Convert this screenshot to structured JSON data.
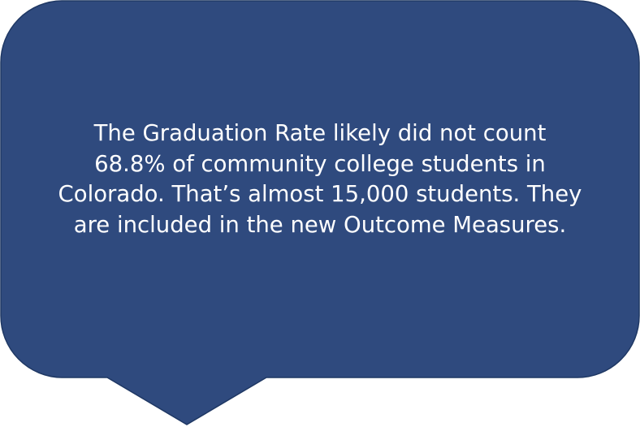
{
  "callout": {
    "fill_color": "#2F4A7E",
    "border_color": "#1F3864",
    "lines": [
      "The Graduation Rate likely did not count",
      "68.8% of community college students in",
      "Colorado. That’s almost 15,000 students. They",
      "are included in the new Outcome Measures."
    ]
  }
}
